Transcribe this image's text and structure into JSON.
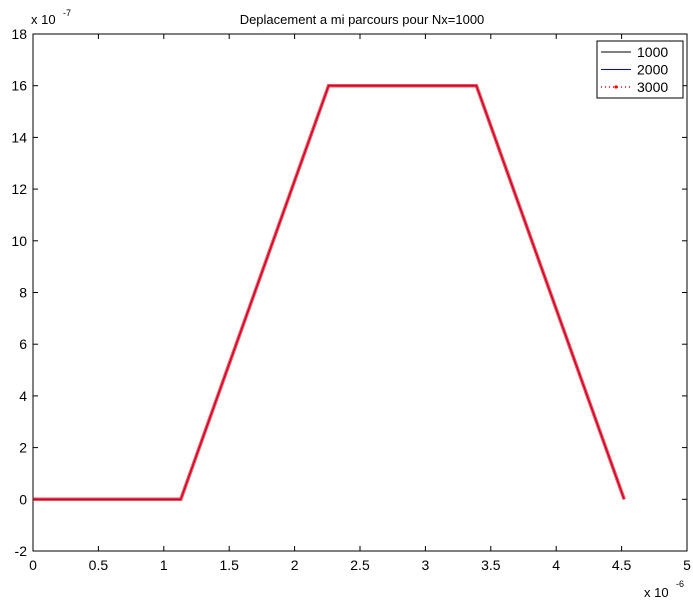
{
  "chart_data": {
    "type": "line",
    "title": "Deplacement a mi parcours pour Nx=1000",
    "xlabel": "",
    "ylabel": "",
    "x_exponent": {
      "base": "x 10",
      "power": "-6"
    },
    "y_exponent": {
      "base": "x 10",
      "power": "-7"
    },
    "xlim": [
      0,
      5
    ],
    "ylim": [
      -2,
      18
    ],
    "x_ticks": [
      0,
      0.5,
      1,
      1.5,
      2,
      2.5,
      3,
      3.5,
      4,
      4.5,
      5
    ],
    "x_tick_labels": [
      "0",
      "0.5",
      "1",
      "1.5",
      "2",
      "2.5",
      "3",
      "3.5",
      "4",
      "4.5",
      "5"
    ],
    "y_ticks": [
      -2,
      0,
      2,
      4,
      6,
      8,
      10,
      12,
      14,
      16,
      18
    ],
    "y_tick_labels": [
      "-2",
      "0",
      "2",
      "4",
      "6",
      "8",
      "10",
      "12",
      "14",
      "16",
      "18"
    ],
    "grid": false,
    "legend_position": "top-right",
    "series": [
      {
        "name": "1000",
        "color": "#000000",
        "style": "solid",
        "x": [
          0,
          1.13,
          2.26,
          3.39,
          4.52
        ],
        "y": [
          0,
          0,
          16,
          16,
          0
        ]
      },
      {
        "name": "2000",
        "color": "#0000ff",
        "style": "solid",
        "x": [
          0,
          1.13,
          2.26,
          3.39,
          4.52
        ],
        "y": [
          0,
          0,
          16,
          16,
          0
        ]
      },
      {
        "name": "3000",
        "color": "#ff0000",
        "style": "dotted",
        "x": [
          0,
          1.13,
          2.26,
          3.39,
          4.52
        ],
        "y": [
          0,
          0,
          16,
          16,
          0
        ]
      }
    ]
  }
}
